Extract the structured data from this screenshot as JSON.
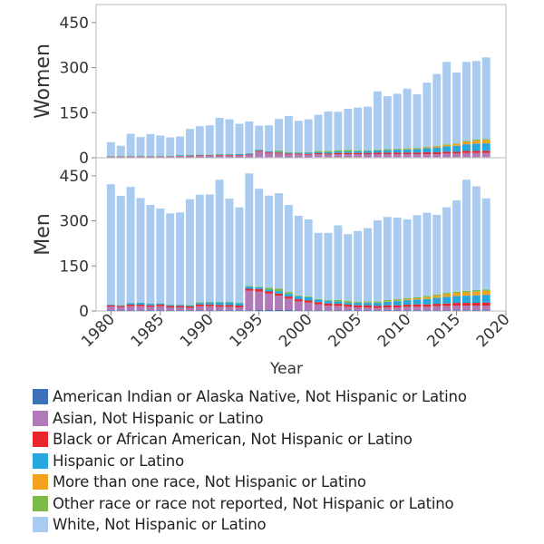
{
  "chart_data": {
    "type": "bar",
    "stacked": true,
    "xlabel": "Year",
    "x_ticks": [
      1980,
      1985,
      1990,
      1995,
      2000,
      2005,
      2010,
      2015,
      2020
    ],
    "x_range": [
      1978.5,
      2020
    ],
    "series_names": [
      "American Indian or Alaska Native, Not Hispanic or Latino",
      "Asian, Not Hispanic or Latino",
      "Black or African American, Not Hispanic or Latino",
      "Hispanic or Latino",
      "More than one race, Not Hispanic or Latino",
      "Other race or race not reported, Not Hispanic or Latino",
      "White, Not Hispanic or Latino"
    ],
    "colors": [
      "#3d72b8",
      "#b07ab8",
      "#e8262b",
      "#27a7df",
      "#f4a11e",
      "#7cbb47",
      "#a9cbef"
    ],
    "panels": [
      {
        "ylabel": "Women",
        "ylim": [
          0,
          510
        ],
        "y_ticks": [
          0,
          150,
          300,
          450
        ],
        "years": [
          1980,
          1981,
          1982,
          1983,
          1984,
          1985,
          1986,
          1987,
          1988,
          1989,
          1990,
          1991,
          1992,
          1993,
          1994,
          1995,
          1996,
          1997,
          1998,
          1999,
          2000,
          2001,
          2002,
          2003,
          2004,
          2005,
          2006,
          2007,
          2008,
          2009,
          2010,
          2011,
          2012,
          2013,
          2014,
          2015,
          2016,
          2017,
          2018
        ],
        "series": [
          {
            "name": "American Indian or Alaska Native, Not Hispanic or Latino",
            "values": [
              1,
              1,
              1,
              1,
              1,
              1,
              1,
              1,
              1,
              1,
              1,
              1,
              1,
              1,
              1,
              2,
              2,
              2,
              1,
              1,
              1,
              2,
              2,
              2,
              2,
              2,
              2,
              2,
              2,
              2,
              2,
              2,
              2,
              2,
              2,
              2,
              2,
              2,
              2
            ]
          },
          {
            "name": "Asian, Not Hispanic or Latino",
            "values": [
              2,
              2,
              3,
              3,
              3,
              3,
              3,
              4,
              4,
              5,
              5,
              6,
              6,
              6,
              8,
              18,
              14,
              12,
              10,
              10,
              9,
              10,
              9,
              10,
              10,
              10,
              10,
              10,
              10,
              10,
              10,
              10,
              10,
              10,
              12,
              12,
              14,
              14,
              14
            ]
          },
          {
            "name": "Black or African American, Not Hispanic or Latino",
            "values": [
              1,
              1,
              1,
              1,
              1,
              1,
              1,
              1,
              2,
              2,
              2,
              2,
              2,
              2,
              2,
              3,
              3,
              3,
              3,
              3,
              3,
              3,
              3,
              4,
              4,
              4,
              4,
              5,
              5,
              5,
              5,
              5,
              6,
              6,
              6,
              6,
              7,
              7,
              7
            ]
          },
          {
            "name": "Hispanic or Latino",
            "values": [
              1,
              1,
              1,
              1,
              1,
              1,
              1,
              2,
              2,
              2,
              2,
              2,
              2,
              3,
              3,
              3,
              3,
              3,
              3,
              3,
              4,
              4,
              5,
              5,
              5,
              6,
              7,
              8,
              9,
              10,
              11,
              12,
              14,
              16,
              18,
              20,
              22,
              24,
              25
            ]
          },
          {
            "name": "More than one race, Not Hispanic or Latino",
            "values": [
              0,
              0,
              0,
              0,
              0,
              0,
              0,
              0,
              0,
              0,
              0,
              0,
              0,
              0,
              0,
              0,
              0,
              0,
              0,
              0,
              0,
              0,
              0,
              0,
              0,
              0,
              0,
              1,
              1,
              1,
              2,
              2,
              3,
              4,
              5,
              6,
              8,
              10,
              11
            ]
          },
          {
            "name": "Other race or race not reported, Not Hispanic or Latino",
            "values": [
              1,
              1,
              1,
              1,
              1,
              1,
              1,
              1,
              1,
              1,
              1,
              1,
              1,
              1,
              1,
              1,
              1,
              4,
              2,
              2,
              2,
              4,
              4,
              4,
              5,
              3,
              2,
              2,
              2,
              2,
              2,
              2,
              2,
              2,
              2,
              2,
              3,
              4,
              3
            ]
          },
          {
            "name": "White, Not Hispanic or Latino",
            "values": [
              46,
              34,
              73,
              62,
              72,
              67,
              61,
              62,
              86,
              94,
              97,
              121,
              116,
              100,
              106,
              80,
              85,
              105,
              120,
              104,
              109,
              120,
              131,
              128,
              137,
              142,
              145,
              193,
              176,
              183,
              198,
              178,
              213,
              239,
              274,
              236,
              263,
              261,
              272
            ]
          }
        ]
      },
      {
        "ylabel": "Men",
        "ylim": [
          0,
          510
        ],
        "y_ticks": [
          0,
          150,
          300,
          450
        ],
        "years": [
          1980,
          1981,
          1982,
          1983,
          1984,
          1985,
          1986,
          1987,
          1988,
          1989,
          1990,
          1991,
          1992,
          1993,
          1994,
          1995,
          1996,
          1997,
          1998,
          1999,
          2000,
          2001,
          2002,
          2003,
          2004,
          2005,
          2006,
          2007,
          2008,
          2009,
          2010,
          2011,
          2012,
          2013,
          2014,
          2015,
          2016,
          2017,
          2018
        ],
        "series": [
          {
            "name": "American Indian or Alaska Native, Not Hispanic or Latino",
            "values": [
              2,
              2,
              2,
              2,
              2,
              2,
              2,
              2,
              2,
              2,
              2,
              2,
              2,
              2,
              2,
              3,
              3,
              3,
              3,
              2,
              2,
              2,
              2,
              2,
              2,
              2,
              2,
              2,
              2,
              2,
              2,
              2,
              2,
              2,
              2,
              2,
              2,
              2,
              2
            ]
          },
          {
            "name": "Asian, Not Hispanic or Latino",
            "values": [
              13,
              11,
              14,
              14,
              12,
              14,
              10,
              10,
              8,
              14,
              14,
              12,
              12,
              10,
              65,
              62,
              55,
              48,
              38,
              30,
              26,
              20,
              16,
              15,
              12,
              10,
              10,
              8,
              10,
              10,
              12,
              12,
              12,
              14,
              15,
              16,
              16,
              16,
              16
            ]
          },
          {
            "name": "Black or African American, Not Hispanic or Latino",
            "values": [
              4,
              4,
              5,
              5,
              5,
              5,
              5,
              5,
              5,
              6,
              6,
              6,
              6,
              6,
              7,
              8,
              7,
              7,
              7,
              7,
              7,
              7,
              7,
              7,
              7,
              7,
              7,
              7,
              7,
              7,
              7,
              8,
              8,
              8,
              8,
              9,
              9,
              9,
              10
            ]
          },
          {
            "name": "Hispanic or Latino",
            "values": [
              2,
              2,
              5,
              6,
              5,
              4,
              3,
              3,
              3,
              5,
              7,
              9,
              9,
              8,
              7,
              6,
              6,
              8,
              9,
              10,
              11,
              9,
              8,
              8,
              7,
              8,
              9,
              10,
              12,
              14,
              15,
              16,
              18,
              20,
              22,
              23,
              24,
              25,
              26
            ]
          },
          {
            "name": "More than one race, Not Hispanic or Latino",
            "values": [
              0,
              0,
              0,
              0,
              0,
              0,
              0,
              0,
              0,
              0,
              0,
              0,
              0,
              0,
              0,
              0,
              0,
              0,
              0,
              0,
              0,
              0,
              0,
              0,
              0,
              0,
              1,
              1,
              2,
              2,
              3,
              4,
              6,
              7,
              9,
              10,
              11,
              12,
              13
            ]
          },
          {
            "name": "Other race or race not reported, Not Hispanic or Latino",
            "values": [
              1,
              1,
              1,
              1,
              1,
              1,
              1,
              1,
              2,
              2,
              2,
              2,
              2,
              2,
              2,
              2,
              6,
              8,
              6,
              3,
              3,
              2,
              3,
              5,
              6,
              3,
              3,
              4,
              4,
              4,
              4,
              4,
              4,
              4,
              4,
              4,
              5,
              6,
              4
            ]
          },
          {
            "name": "White, Not Hispanic or Latino",
            "values": [
              400,
              363,
              386,
              348,
              328,
              315,
              304,
              307,
              352,
              358,
              357,
              406,
              343,
              317,
              375,
              326,
              307,
              318,
              290,
              265,
              256,
              220,
              224,
              248,
              222,
              236,
              244,
              270,
              276,
              272,
              262,
              273,
              277,
              265,
              285,
              304,
              370,
              345,
              304
            ]
          }
        ]
      }
    ]
  }
}
